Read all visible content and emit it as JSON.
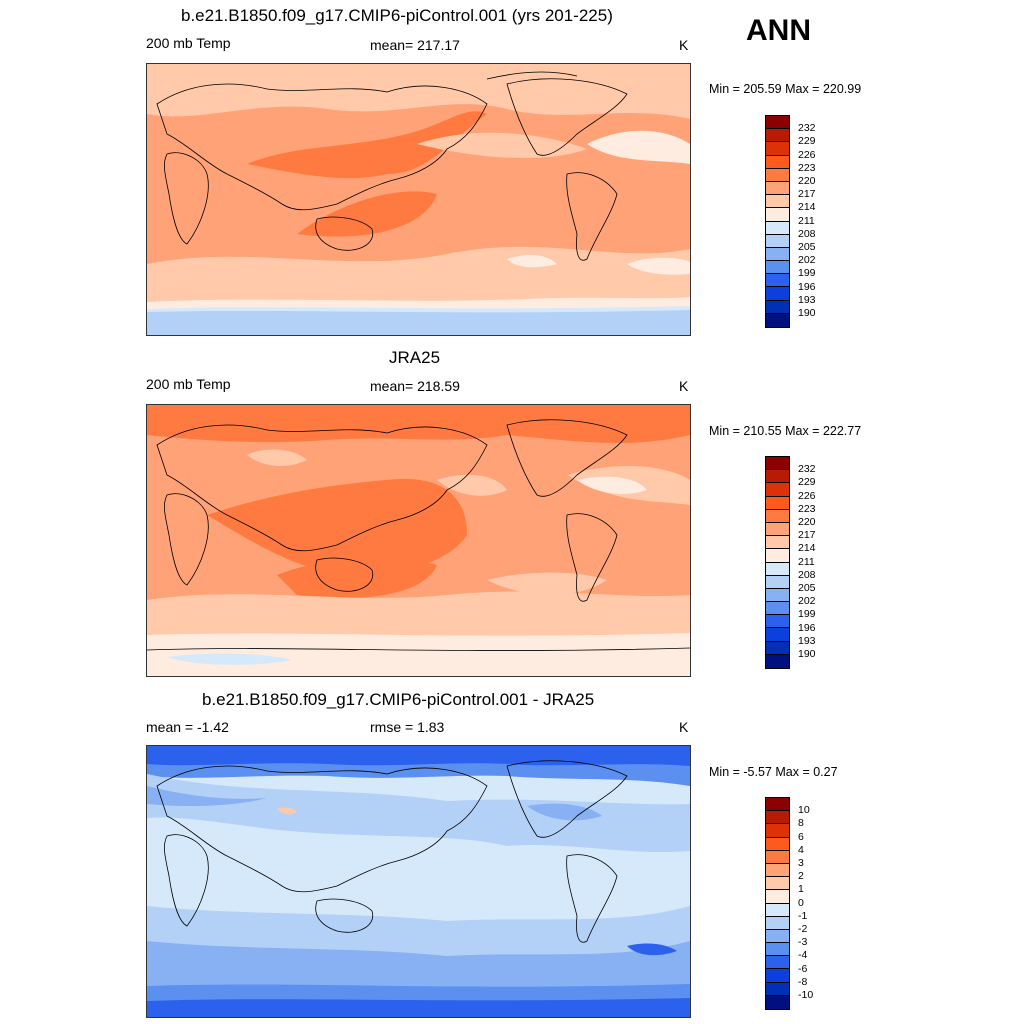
{
  "season": "ANN",
  "panels": [
    {
      "title": "b.e21.B1850.f09_g17.CMIP6-piControl.001 (yrs 201-225)",
      "left_label": "200 mb Temp",
      "center_label": "mean= 217.17",
      "units": "K",
      "minmax": "Min = 205.59 Max = 220.99",
      "colorbar": {
        "labels": [
          "232",
          "229",
          "226",
          "223",
          "220",
          "217",
          "214",
          "211",
          "208",
          "205",
          "202",
          "199",
          "196",
          "193",
          "190"
        ],
        "colors": [
          "#8b0000",
          "#b81b04",
          "#dd3208",
          "#ff5a1e",
          "#ff7a40",
          "#ffa277",
          "#ffc9aa",
          "#ffece0",
          "#d6e9fb",
          "#b3d1f7",
          "#88b1f4",
          "#5b8ff0",
          "#2c61ee",
          "#0c3fdb",
          "#012fb6",
          "#00107e"
        ]
      },
      "map_colors": {
        "base": "#ffa277",
        "high": "#ff7a40",
        "mid": "#ffc9aa",
        "low": "#ffece0",
        "cool": "#d6e9fb",
        "cold": "#b3d1f7"
      }
    },
    {
      "title": "JRA25",
      "left_label": "200 mb Temp",
      "center_label": "mean= 218.59",
      "units": "K",
      "minmax": "Min = 210.55 Max = 222.77",
      "colorbar": {
        "labels": [
          "232",
          "229",
          "226",
          "223",
          "220",
          "217",
          "214",
          "211",
          "208",
          "205",
          "202",
          "199",
          "196",
          "193",
          "190"
        ],
        "colors": [
          "#8b0000",
          "#b81b04",
          "#dd3208",
          "#ff5a1e",
          "#ff7a40",
          "#ffa277",
          "#ffc9aa",
          "#ffece0",
          "#d6e9fb",
          "#b3d1f7",
          "#88b1f4",
          "#5b8ff0",
          "#2c61ee",
          "#0c3fdb",
          "#012fb6",
          "#00107e"
        ]
      },
      "map_colors": {
        "base": "#ffa277",
        "high": "#ff7a40",
        "mid": "#ffc9aa",
        "low": "#ffece0",
        "cool": "#d6e9fb"
      }
    },
    {
      "title": "b.e21.B1850.f09_g17.CMIP6-piControl.001 - JRA25",
      "left_label": "mean =  -1.42",
      "center_label": "rmse =   1.83",
      "units": "K",
      "minmax": "Min =  -5.57 Max =   0.27",
      "colorbar": {
        "labels": [
          "10",
          "8",
          "6",
          "4",
          "3",
          "2",
          "1",
          "0",
          "-1",
          "-2",
          "-3",
          "-4",
          "-6",
          "-8",
          "-10"
        ],
        "colors": [
          "#8b0000",
          "#b81b04",
          "#dd3208",
          "#ff5a1e",
          "#ff7a40",
          "#ffa277",
          "#ffc9aa",
          "#ffece0",
          "#d6e9fb",
          "#b3d1f7",
          "#88b1f4",
          "#5b8ff0",
          "#2c61ee",
          "#0c3fdb",
          "#012fb6",
          "#00107e"
        ]
      },
      "map_colors": {
        "base": "#d6e9fb",
        "band1": "#b3d1f7",
        "band2": "#88b1f4",
        "band3": "#5b8ff0",
        "band4": "#2c61ee",
        "warm": "#ffc9aa"
      }
    }
  ]
}
